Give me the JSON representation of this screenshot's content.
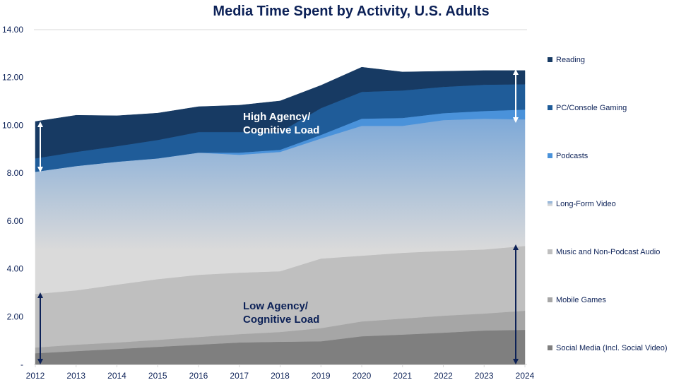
{
  "chart_data": {
    "type": "area",
    "stacked": true,
    "title": "Media Time Spent by Activity, U.S. Adults",
    "xlabel": "",
    "ylabel": "",
    "ylim": [
      0,
      14
    ],
    "y_ticks": [
      0,
      2,
      4,
      6,
      8,
      10,
      12,
      14
    ],
    "y_tick_labels": [
      "-",
      "2.00",
      "4.00",
      "6.00",
      "8.00",
      "10.00",
      "12.00",
      "14.00"
    ],
    "x": [
      "2012",
      "2013",
      "2014",
      "2015",
      "2016",
      "2017",
      "2018",
      "2019",
      "2020",
      "2021",
      "2022",
      "2023",
      "2024"
    ],
    "legend_position": "right",
    "series": [
      {
        "name": "Social Media (Incl. Social Video)",
        "color": "#7f7f7f",
        "values": [
          0.47,
          0.56,
          0.65,
          0.74,
          0.83,
          0.92,
          0.95,
          0.97,
          1.18,
          1.25,
          1.33,
          1.42,
          1.45
        ]
      },
      {
        "name": "Mobile Games",
        "color": "#a6a6a6",
        "values": [
          0.24,
          0.27,
          0.27,
          0.29,
          0.32,
          0.35,
          0.41,
          0.55,
          0.62,
          0.67,
          0.71,
          0.71,
          0.8
        ]
      },
      {
        "name": "Music and Non-Podcast Audio",
        "color": "#bfbfbf",
        "values": [
          2.24,
          2.27,
          2.42,
          2.54,
          2.6,
          2.57,
          2.54,
          2.91,
          2.75,
          2.75,
          2.71,
          2.68,
          2.71
        ]
      },
      {
        "name": "Long-Form Video",
        "color": "gradient",
        "values": [
          5.11,
          5.2,
          5.14,
          5.05,
          5.11,
          4.93,
          4.99,
          5.02,
          5.43,
          5.31,
          5.47,
          5.47,
          5.29
        ]
      },
      {
        "name": "Podcasts",
        "color": "#4a92da",
        "values": [
          0,
          0,
          0,
          0,
          0,
          0.09,
          0.09,
          0.15,
          0.3,
          0.33,
          0.29,
          0.32,
          0.41
        ]
      },
      {
        "name": "PC/Console Gaming",
        "color": "#1f5c99",
        "values": [
          0.56,
          0.59,
          0.65,
          0.77,
          0.86,
          0.86,
          0.74,
          1.12,
          1.12,
          1.15,
          1.1,
          1.1,
          1.06
        ]
      },
      {
        "name": "Reading",
        "color": "#173a63",
        "values": [
          1.54,
          1.53,
          1.27,
          1.12,
          1.06,
          1.12,
          1.3,
          0.95,
          1.03,
          0.77,
          0.65,
          0.59,
          0.57
        ]
      }
    ],
    "annotations": {
      "high": [
        "High Agency/",
        "Cognitive Load"
      ],
      "low": [
        "Low Agency/",
        "Cognitive Load"
      ]
    },
    "colors": {
      "title": "#0c2157",
      "axis_text": "#0c2157",
      "gradient_top": "#7ea9d8",
      "gradient_bottom": "#dadada"
    }
  }
}
